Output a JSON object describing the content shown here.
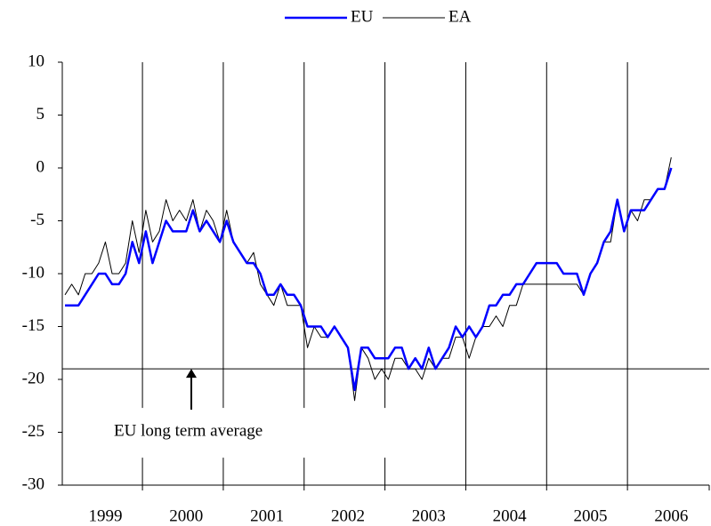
{
  "chart_data": {
    "type": "line",
    "categories": [
      null,
      null,
      null,
      null,
      null,
      null,
      "1999",
      null,
      null,
      null,
      null,
      null,
      null,
      null,
      null,
      null,
      null,
      null,
      "2000",
      null,
      null,
      null,
      null,
      null,
      null,
      null,
      null,
      null,
      null,
      null,
      "2001",
      null,
      null,
      null,
      null,
      null,
      null,
      null,
      null,
      null,
      null,
      null,
      "2002",
      null,
      null,
      null,
      null,
      null,
      null,
      null,
      null,
      null,
      null,
      null,
      "2003",
      null,
      null,
      null,
      null,
      null,
      null,
      null,
      null,
      null,
      null,
      null,
      "2004",
      null,
      null,
      null,
      null,
      null,
      null,
      null,
      null,
      null,
      null,
      null,
      "2005",
      null,
      null,
      null,
      null,
      null,
      null,
      null,
      null,
      null,
      null,
      null,
      "2006"
    ],
    "series": [
      {
        "name": "EU",
        "color": "#0000ff",
        "width": 2.5,
        "values": [
          -13,
          -13,
          -13,
          -12,
          -11,
          -10,
          -10,
          -11,
          -11,
          -10,
          -7,
          -9,
          -6,
          -9,
          -7,
          -5,
          -6,
          -6,
          -6,
          -4,
          -6,
          -5,
          -6,
          -7,
          -5,
          -7,
          -8,
          -9,
          -9,
          -10,
          -12,
          -12,
          -11,
          -12,
          -12,
          -13,
          -15,
          -15,
          -15,
          -16,
          -15,
          -16,
          -17,
          -21,
          -17,
          -17,
          -18,
          -18,
          -18,
          -17,
          -17,
          -19,
          -18,
          -19,
          -17,
          -19,
          -18,
          -17,
          -15,
          -16,
          -15,
          -16,
          -15,
          -13,
          -13,
          -12,
          -12,
          -11,
          -11,
          -10,
          -9,
          -9,
          -9,
          -9,
          -10,
          -10,
          -10,
          -12,
          -10,
          -9,
          -7,
          -6,
          -3,
          -6,
          -4,
          -4,
          -4,
          -3,
          -2,
          -2,
          0
        ]
      },
      {
        "name": "EA",
        "color": "#000000",
        "width": 1,
        "values": [
          -12,
          -11,
          -12,
          -10,
          -10,
          -9,
          -7,
          -10,
          -10,
          -9,
          -5,
          -8,
          -4,
          -7,
          -6,
          -3,
          -5,
          -4,
          -5,
          -3,
          -6,
          -4,
          -5,
          -7,
          -4,
          -7,
          -8,
          -9,
          -8,
          -11,
          -12,
          -13,
          -11,
          -13,
          -13,
          -13,
          -17,
          -15,
          -16,
          -16,
          -15,
          -16,
          -17,
          -22,
          -17,
          -18,
          -20,
          -19,
          -20,
          -18,
          -18,
          -19,
          -19,
          -20,
          -18,
          -19,
          -18,
          -18,
          -16,
          -16,
          -18,
          -16,
          -15,
          -15,
          -14,
          -15,
          -13,
          -13,
          -11,
          -11,
          -11,
          -11,
          -11,
          -11,
          -11,
          -11,
          -11,
          -12,
          -10,
          -9,
          -7,
          -7,
          -3,
          -6,
          -4,
          -5,
          -3,
          -3,
          -2,
          -2,
          1
        ]
      }
    ],
    "reference_line": {
      "value": -19,
      "label": "EU long term average"
    },
    "ylim": [
      -30,
      10
    ],
    "yticks": [
      10,
      5,
      0,
      -5,
      -10,
      -15,
      -20,
      -25,
      -30
    ],
    "legend": "top"
  }
}
